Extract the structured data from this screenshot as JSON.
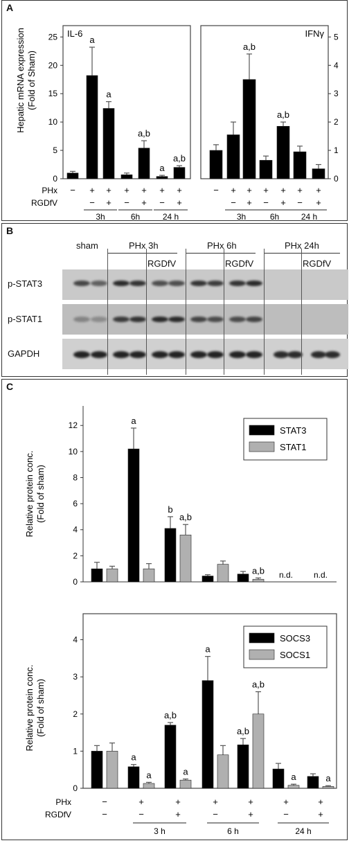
{
  "panel_a": {
    "letter": "A",
    "ylabel_line1": "Hepatic mRNA expression",
    "ylabel_line2": "(Fold of Sham)",
    "pkx_label": "PHx",
    "rgd_label": "RGDfV",
    "pkx_row": [
      "−",
      "+",
      "+",
      "+",
      "+",
      "+",
      "+"
    ],
    "rgd_row": [
      "",
      "−",
      "+",
      "−",
      "+",
      "−",
      "+"
    ],
    "time_labels": [
      "3h",
      "6h",
      "24 h"
    ]
  },
  "panel_b": {
    "letter": "B",
    "headers": [
      "sham",
      "PHx 3h",
      "PHx 6h",
      "PHx 24h"
    ],
    "rgd_marks": [
      "RGDfV",
      "RGDfV",
      "RGDfV"
    ],
    "rows": [
      "p-STAT3",
      "p-STAT1",
      "GAPDH"
    ]
  },
  "panel_c": {
    "letter": "C",
    "ylabel_line1": "Relative protein conc.",
    "ylabel_line2": "(Fold of sham)",
    "pkx_label": "PHx",
    "rgd_label": "RGDfV",
    "pkx_row": [
      "−",
      "+",
      "+",
      "+",
      "+",
      "+",
      "+"
    ],
    "rgd_row": [
      "−",
      "−",
      "+",
      "−",
      "+",
      "−",
      "+"
    ],
    "time_labels": [
      "3 h",
      "6 h",
      "24 h"
    ],
    "nd_label": "n.d."
  },
  "chart_data": [
    {
      "type": "bar",
      "title": "IL-6",
      "categories": [
        "sham",
        "3h",
        "3h+RGDfV",
        "6h",
        "6h+RGDfV",
        "24h",
        "24h+RGDfV"
      ],
      "values": [
        1.0,
        18.2,
        12.4,
        0.7,
        5.4,
        0.4,
        2.0
      ],
      "errors": [
        0.3,
        5.0,
        1.2,
        0.3,
        1.3,
        0.2,
        0.3
      ],
      "annotations": [
        "",
        "a",
        "a",
        "",
        "a,b",
        "a",
        "a,b"
      ],
      "ylim": [
        0,
        27
      ],
      "yticks": [
        0,
        5,
        10,
        15,
        20,
        25
      ]
    },
    {
      "type": "bar",
      "title": "IFNγ",
      "categories": [
        "sham",
        "3h",
        "3h+RGDfV",
        "6h",
        "6h+RGDfV",
        "24h",
        "24h+RGDfV"
      ],
      "values": [
        1.0,
        1.55,
        3.5,
        0.65,
        1.85,
        0.95,
        0.35
      ],
      "errors": [
        0.2,
        0.45,
        0.9,
        0.15,
        0.15,
        0.2,
        0.15
      ],
      "annotations": [
        "",
        "",
        "a,b",
        "",
        "a,b",
        "",
        ""
      ],
      "ylim": [
        0,
        5.4
      ],
      "yticks": [
        0,
        1,
        2,
        3,
        4,
        5
      ]
    },
    {
      "type": "bar",
      "categories": [
        "sham",
        "3h",
        "3h+RGDfV",
        "6h",
        "6h+RGDfV",
        "24h",
        "24h+RGDfV"
      ],
      "series": [
        {
          "name": "STAT3",
          "color": "#000000",
          "values": [
            1.0,
            10.2,
            4.1,
            0.45,
            0.6,
            null,
            null
          ],
          "errors": [
            0.5,
            1.6,
            0.9,
            0.1,
            0.2,
            null,
            null
          ],
          "annotations": [
            "",
            "a",
            "b",
            "",
            "",
            "",
            ""
          ]
        },
        {
          "name": "STAT1",
          "color": "#b0b0b0",
          "values": [
            1.0,
            1.0,
            3.6,
            1.35,
            0.2,
            null,
            null
          ],
          "errors": [
            0.2,
            0.4,
            0.8,
            0.25,
            0.1,
            null,
            null
          ],
          "annotations": [
            "",
            "",
            "a,b",
            "",
            "a,b",
            "",
            ""
          ]
        }
      ],
      "nd_groups": [
        5,
        6
      ],
      "ylim": [
        0,
        13.5
      ],
      "yticks": [
        0,
        2,
        4,
        6,
        8,
        10,
        12
      ],
      "legend": "top-right"
    },
    {
      "type": "bar",
      "categories": [
        "sham",
        "3h",
        "3h+RGDfV",
        "6h",
        "6h+RGDfV",
        "24h",
        "24h+RGDfV"
      ],
      "series": [
        {
          "name": "SOCS3",
          "color": "#000000",
          "values": [
            1.0,
            0.58,
            1.7,
            2.9,
            1.17,
            0.52,
            0.32
          ],
          "errors": [
            0.15,
            0.06,
            0.07,
            0.65,
            0.17,
            0.15,
            0.07
          ],
          "annotations": [
            "",
            "a",
            "a,b",
            "a",
            "a,b",
            "",
            ""
          ]
        },
        {
          "name": "SOCS1",
          "color": "#b0b0b0",
          "values": [
            1.0,
            0.13,
            0.22,
            0.9,
            2.0,
            0.08,
            0.05
          ],
          "errors": [
            0.22,
            0.03,
            0.03,
            0.25,
            0.6,
            0.03,
            0.02
          ],
          "annotations": [
            "",
            "a",
            "a",
            "",
            "a,b",
            "a",
            "a"
          ]
        }
      ],
      "ylim": [
        0,
        4.7
      ],
      "yticks": [
        0,
        1,
        2,
        3,
        4
      ],
      "legend": "top-right"
    }
  ]
}
